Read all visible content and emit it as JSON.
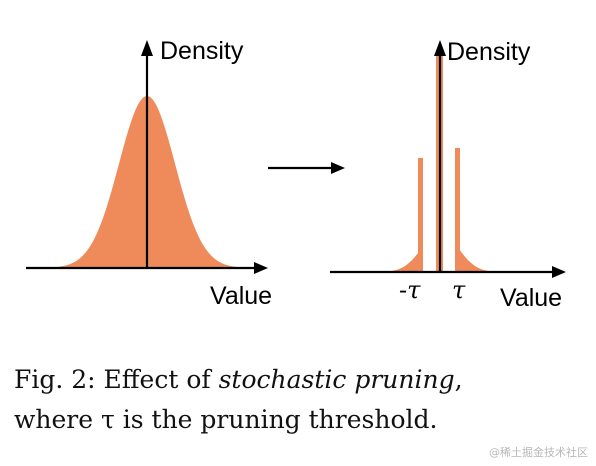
{
  "colors": {
    "fill": "#ef8a5b",
    "axis": "#000000"
  },
  "left_plot": {
    "y_axis_label": "Density",
    "x_axis_label": "Value"
  },
  "transition_arrow_icon": "right-arrow-icon",
  "right_plot": {
    "y_axis_label": "Density",
    "x_axis_label": "Value",
    "neg_threshold_label": "-τ",
    "pos_threshold_label": "τ"
  },
  "caption": {
    "prefix": "Fig. 2: Effect of ",
    "emphasis": "stochastic pruning",
    "suffix": ",",
    "line2": "where τ is the pruning threshold."
  },
  "watermark": "@稀土掘金技术社区"
}
